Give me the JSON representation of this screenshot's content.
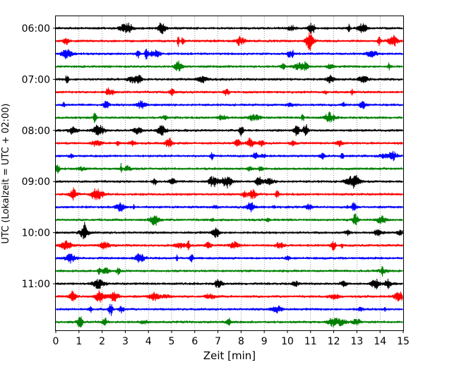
{
  "chart_data": {
    "type": "line",
    "subtype": "helicorder-seismogram",
    "title": "",
    "xlabel": "Zeit  [min]",
    "ylabel": "UTC (Lokalzeit = UTC + 02:00)",
    "xlim": [
      0,
      15
    ],
    "x_ticks": [
      0,
      1,
      2,
      3,
      4,
      5,
      6,
      7,
      8,
      9,
      10,
      11,
      12,
      13,
      14,
      15
    ],
    "y_tick_labels": [
      "06:00",
      "07:00",
      "08:00",
      "09:00",
      "10:00",
      "11:00"
    ],
    "line_interval_minutes": 15,
    "grid": "vertical dotted at each minute",
    "trace_colors": [
      "#000000",
      "#ff0000",
      "#0000ff",
      "#008000"
    ],
    "traces": [
      {
        "start": "06:00",
        "color": "#000000"
      },
      {
        "start": "06:15",
        "color": "#ff0000"
      },
      {
        "start": "06:30",
        "color": "#0000ff"
      },
      {
        "start": "06:45",
        "color": "#008000"
      },
      {
        "start": "07:00",
        "color": "#000000"
      },
      {
        "start": "07:15",
        "color": "#ff0000"
      },
      {
        "start": "07:30",
        "color": "#0000ff"
      },
      {
        "start": "07:45",
        "color": "#008000"
      },
      {
        "start": "08:00",
        "color": "#000000"
      },
      {
        "start": "08:15",
        "color": "#ff0000"
      },
      {
        "start": "08:30",
        "color": "#0000ff"
      },
      {
        "start": "08:45",
        "color": "#008000"
      },
      {
        "start": "09:00",
        "color": "#000000"
      },
      {
        "start": "09:15",
        "color": "#ff0000"
      },
      {
        "start": "09:30",
        "color": "#0000ff"
      },
      {
        "start": "09:45",
        "color": "#008000"
      },
      {
        "start": "10:00",
        "color": "#000000"
      },
      {
        "start": "10:15",
        "color": "#ff0000"
      },
      {
        "start": "10:30",
        "color": "#0000ff"
      },
      {
        "start": "10:45",
        "color": "#008000"
      },
      {
        "start": "11:00",
        "color": "#000000"
      },
      {
        "start": "11:15",
        "color": "#ff0000"
      },
      {
        "start": "11:30",
        "color": "#0000ff"
      },
      {
        "start": "11:45",
        "color": "#008000"
      }
    ]
  }
}
